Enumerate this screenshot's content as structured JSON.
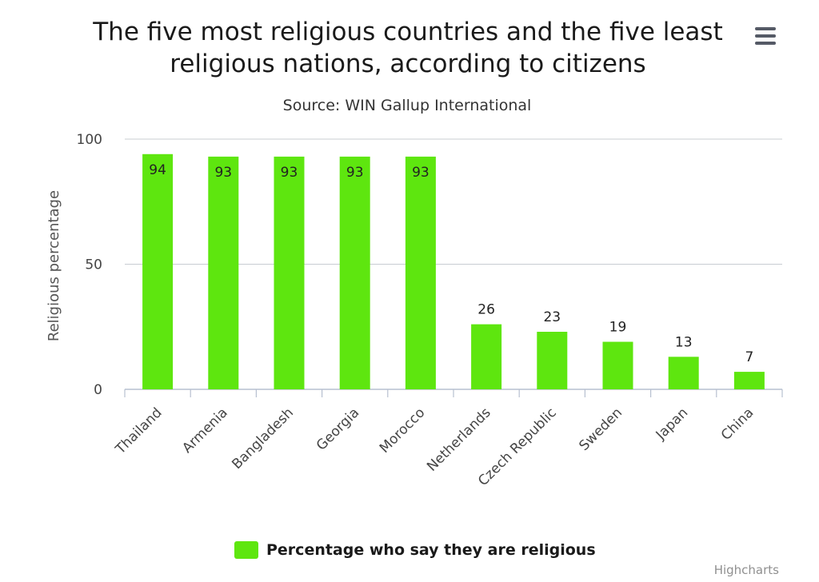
{
  "header": {
    "title": "The five most religious countries and the five least religious nations, according to citizens",
    "subtitle": "Source: WIN Gallup International"
  },
  "menu": {
    "icon": "hamburger-menu-icon"
  },
  "credits": "Highcharts",
  "colors": {
    "bar": "#5ee60f",
    "grid": "#c8ccd2",
    "axis_line": "#b7c0d0"
  },
  "chart_data": {
    "type": "bar",
    "title": "The five most religious countries and the five least religious nations, according to citizens",
    "subtitle": "Source: WIN Gallup International",
    "xlabel": "",
    "ylabel": "Religious percentage",
    "ylim": [
      0,
      100
    ],
    "yticks": [
      "0",
      "50",
      "100"
    ],
    "grid": true,
    "legend_position": "bottom",
    "categories": [
      "Thailand",
      "Armenia",
      "Bangladesh",
      "Georgia",
      "Morocco",
      "Netherlands",
      "Czech Republic",
      "Sweden",
      "Japan",
      "China"
    ],
    "series": [
      {
        "name": "Percentage who say they are religious",
        "values": [
          94,
          93,
          93,
          93,
          93,
          26,
          23,
          19,
          13,
          7
        ]
      }
    ]
  }
}
